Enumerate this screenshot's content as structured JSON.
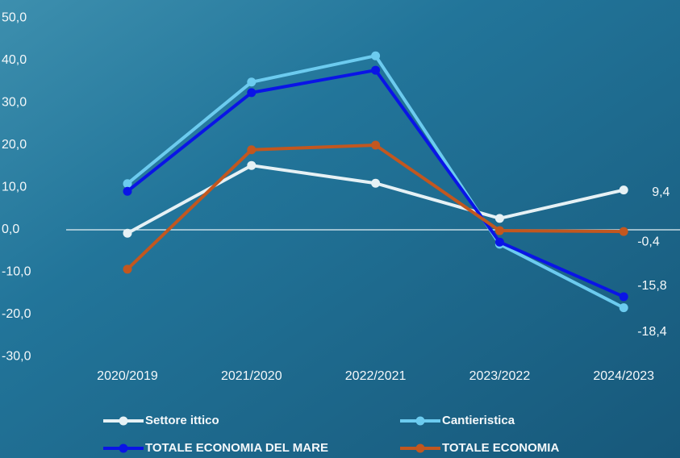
{
  "chart_data": {
    "type": "line",
    "categories": [
      "2020/2019",
      "2021/2020",
      "2022/2021",
      "2023/2022",
      "2024/2023"
    ],
    "series": [
      {
        "name": "Settore ittico",
        "color": "#e6f1f5",
        "values": [
          -0.8,
          15.2,
          11.0,
          2.7,
          9.4
        ],
        "value_labels": [
          null,
          null,
          null,
          null,
          "9,4"
        ]
      },
      {
        "name": "Cantieristica",
        "color": "#6ccbef",
        "values": [
          10.9,
          34.9,
          41.1,
          -3.4,
          -18.4
        ],
        "value_labels": [
          null,
          null,
          null,
          null,
          "-18,4"
        ]
      },
      {
        "name": "TOTALE ECONOMIA DEL MARE",
        "color": "#0a14e6",
        "values": [
          9.1,
          32.4,
          37.7,
          -2.9,
          -15.8
        ],
        "value_labels": [
          null,
          null,
          null,
          null,
          "-15,8"
        ]
      },
      {
        "name": "TOTALE ECONOMIA",
        "color": "#c2571f",
        "values": [
          -9.3,
          18.9,
          20.0,
          -0.2,
          -0.4
        ],
        "value_labels": [
          null,
          null,
          null,
          null,
          "-0,4"
        ]
      }
    ],
    "ylim": [
      -30,
      50
    ],
    "yticks": [
      {
        "value": 50,
        "label": "50,0"
      },
      {
        "value": 40,
        "label": "40,0"
      },
      {
        "value": 30,
        "label": "30,0"
      },
      {
        "value": 20,
        "label": "20,0"
      },
      {
        "value": 10,
        "label": "10,0"
      },
      {
        "value": 0,
        "label": "0,0"
      },
      {
        "value": -10,
        "label": "-10,0"
      },
      {
        "value": -20,
        "label": "-20,0"
      },
      {
        "value": -30,
        "label": "-30,0"
      }
    ],
    "legend": "bottom"
  }
}
